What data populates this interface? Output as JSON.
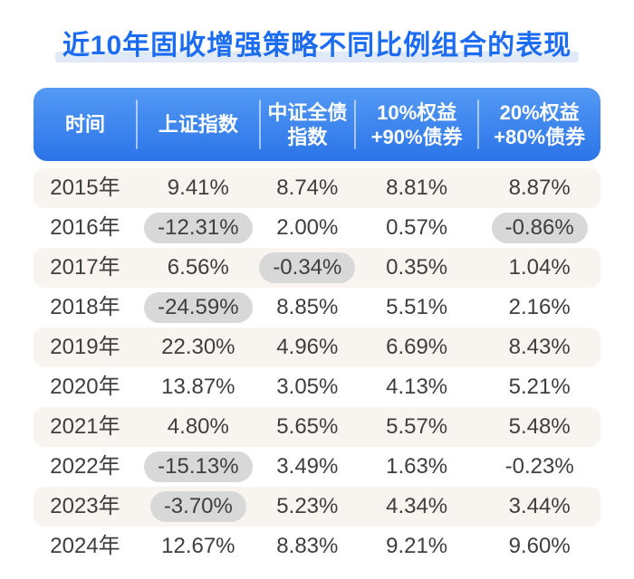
{
  "title": "近10年固收增强策略不同比例组合的表现",
  "colors": {
    "title_blue": "#1b6cf3",
    "title_underline": "#dfe9f7",
    "header_gradient_top": "#549af5",
    "header_gradient_bottom": "#2b74e8",
    "row_alt_bg": "#f8f5f0",
    "negative_pill_bg": "#d8d8d8",
    "text_dark": "#3e3e3e",
    "page_bg": "#ffffff",
    "header_text": "#ffffff"
  },
  "table": {
    "headers": [
      {
        "line1": "时间",
        "line2": ""
      },
      {
        "line1": "上证指数",
        "line2": ""
      },
      {
        "line1": "中证全债",
        "line2": "指数"
      },
      {
        "line1": "10%权益",
        "line2": "+90%债券"
      },
      {
        "line1": "20%权益",
        "line2": "+80%债券"
      }
    ],
    "rows": [
      {
        "year": "2015年",
        "cells": [
          {
            "t": "9.41%",
            "pill": false
          },
          {
            "t": "8.74%",
            "pill": false
          },
          {
            "t": "8.81%",
            "pill": false
          },
          {
            "t": "8.87%",
            "pill": false
          }
        ]
      },
      {
        "year": "2016年",
        "cells": [
          {
            "t": "-12.31%",
            "pill": true
          },
          {
            "t": "2.00%",
            "pill": false
          },
          {
            "t": "0.57%",
            "pill": false
          },
          {
            "t": "-0.86%",
            "pill": true
          }
        ]
      },
      {
        "year": "2017年",
        "cells": [
          {
            "t": "6.56%",
            "pill": false
          },
          {
            "t": "-0.34%",
            "pill": true
          },
          {
            "t": "0.35%",
            "pill": false
          },
          {
            "t": "1.04%",
            "pill": false
          }
        ]
      },
      {
        "year": "2018年",
        "cells": [
          {
            "t": "-24.59%",
            "pill": true
          },
          {
            "t": "8.85%",
            "pill": false
          },
          {
            "t": "5.51%",
            "pill": false
          },
          {
            "t": "2.16%",
            "pill": false
          }
        ]
      },
      {
        "year": "2019年",
        "cells": [
          {
            "t": "22.30%",
            "pill": false
          },
          {
            "t": "4.96%",
            "pill": false
          },
          {
            "t": "6.69%",
            "pill": false
          },
          {
            "t": "8.43%",
            "pill": false
          }
        ]
      },
      {
        "year": "2020年",
        "cells": [
          {
            "t": "13.87%",
            "pill": false
          },
          {
            "t": "3.05%",
            "pill": false
          },
          {
            "t": "4.13%",
            "pill": false
          },
          {
            "t": "5.21%",
            "pill": false
          }
        ]
      },
      {
        "year": "2021年",
        "cells": [
          {
            "t": "4.80%",
            "pill": false
          },
          {
            "t": "5.65%",
            "pill": false
          },
          {
            "t": "5.57%",
            "pill": false
          },
          {
            "t": "5.48%",
            "pill": false
          }
        ]
      },
      {
        "year": "2022年",
        "cells": [
          {
            "t": "-15.13%",
            "pill": true
          },
          {
            "t": "3.49%",
            "pill": false
          },
          {
            "t": "1.63%",
            "pill": false
          },
          {
            "t": "-0.23%",
            "pill": false
          }
        ]
      },
      {
        "year": "2023年",
        "cells": [
          {
            "t": "-3.70%",
            "pill": true
          },
          {
            "t": "5.23%",
            "pill": false
          },
          {
            "t": "4.34%",
            "pill": false
          },
          {
            "t": "3.44%",
            "pill": false
          }
        ]
      },
      {
        "year": "2024年",
        "cells": [
          {
            "t": "12.67%",
            "pill": false
          },
          {
            "t": "8.83%",
            "pill": false
          },
          {
            "t": "9.21%",
            "pill": false
          },
          {
            "t": "9.60%",
            "pill": false
          }
        ]
      }
    ]
  },
  "chart_data": {
    "type": "table",
    "title": "近10年固收增强策略不同比例组合的表现",
    "categories": [
      "2015年",
      "2016年",
      "2017年",
      "2018年",
      "2019年",
      "2020年",
      "2021年",
      "2022年",
      "2023年",
      "2024年"
    ],
    "series": [
      {
        "name": "上证指数",
        "values": [
          9.41,
          -12.31,
          6.56,
          -24.59,
          22.3,
          13.87,
          4.8,
          -15.13,
          -3.7,
          12.67
        ]
      },
      {
        "name": "中证全债指数",
        "values": [
          8.74,
          2.0,
          -0.34,
          8.85,
          4.96,
          3.05,
          5.65,
          3.49,
          5.23,
          8.83
        ]
      },
      {
        "name": "10%权益+90%债券",
        "values": [
          8.81,
          0.57,
          0.35,
          5.51,
          6.69,
          4.13,
          5.57,
          1.63,
          4.34,
          9.21
        ]
      },
      {
        "name": "20%权益+80%债券",
        "values": [
          8.87,
          -0.86,
          1.04,
          2.16,
          8.43,
          5.21,
          5.48,
          -0.23,
          3.44,
          9.6
        ]
      }
    ],
    "unit": "%",
    "highlighted_negative_cells": [
      {
        "year": "2016年",
        "series": "上证指数"
      },
      {
        "year": "2016年",
        "series": "20%权益+80%债券"
      },
      {
        "year": "2017年",
        "series": "中证全债指数"
      },
      {
        "year": "2018年",
        "series": "上证指数"
      },
      {
        "year": "2022年",
        "series": "上证指数"
      },
      {
        "year": "2023年",
        "series": "上证指数"
      }
    ]
  }
}
